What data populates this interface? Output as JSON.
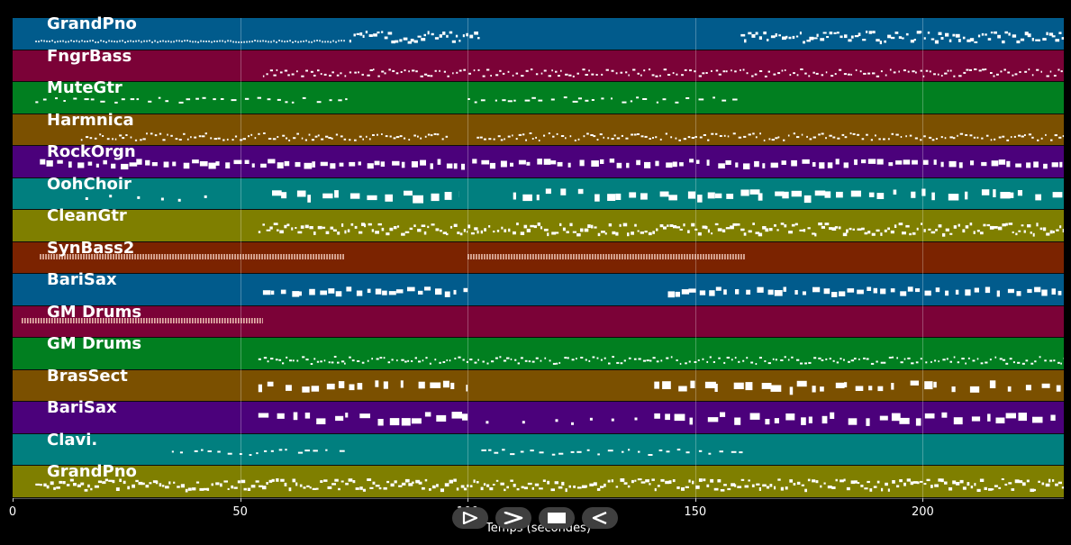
{
  "tracks": [
    {
      "name": "GrandPno",
      "color": "#015b8c"
    },
    {
      "name": "FngrBass",
      "color": "#7b0237"
    },
    {
      "name": "MuteGtr",
      "color": "#017f20"
    },
    {
      "name": "Harmnica",
      "color": "#7b5000"
    },
    {
      "name": "RockOrgn",
      "color": "#4b017b"
    },
    {
      "name": "OohChoir",
      "color": "#017f7f"
    },
    {
      "name": "CleanGtr",
      "color": "#7f7f00"
    },
    {
      "name": "SynBass2",
      "color": "#7b2300"
    },
    {
      "name": "BariSax",
      "color": "#015b8c"
    },
    {
      "name": "GM Drums",
      "color": "#7b0237"
    },
    {
      "name": "GM Drums",
      "color": "#017f20"
    },
    {
      "name": "BrasSect",
      "color": "#7b5000"
    },
    {
      "name": "BariSax",
      "color": "#4b017b"
    },
    {
      "name": "Clavi.",
      "color": "#017f7f"
    },
    {
      "name": "GrandPno",
      "color": "#7f7f00"
    }
  ],
  "x_axis": {
    "min": 0,
    "max": 231,
    "ticks": [
      "0",
      "50",
      "100",
      "150",
      "200"
    ],
    "tick_values": [
      0,
      50,
      100,
      150,
      200
    ],
    "label": "Temps (secondes)"
  },
  "playback_controls": [
    {
      "id": "play",
      "icon": "play-icon"
    },
    {
      "id": "fast-forward",
      "icon": "fast-forward-icon"
    },
    {
      "id": "stop",
      "icon": "stop-icon"
    },
    {
      "id": "rewind",
      "icon": "rewind-icon"
    }
  ]
}
